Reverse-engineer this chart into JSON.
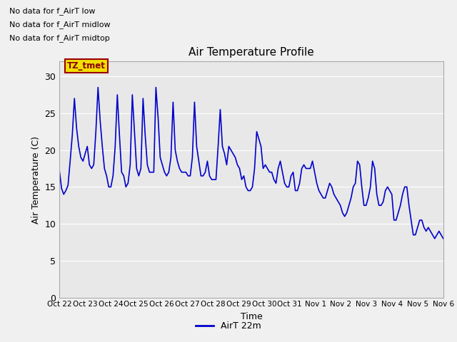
{
  "title": "Air Temperature Profile",
  "xlabel": "Time",
  "ylabel": "Air Temperature (C)",
  "ylim": [
    0,
    32
  ],
  "yticks": [
    0,
    5,
    10,
    15,
    20,
    25,
    30
  ],
  "line_color": "#0000CC",
  "line_width": 1.2,
  "bg_color": "#e8e8e8",
  "fig_bg_color": "#f0f0f0",
  "legend_label": "AirT 22m",
  "text_lines": [
    "No data for f_AirT low",
    "No data for f_AirT midlow",
    "No data for f_AirT midtop"
  ],
  "tz_label": "TZ_tmet",
  "x_tick_labels": [
    "Oct 22",
    "Oct 23",
    "Oct 24",
    "Oct 25",
    "Oct 26",
    "Oct 27",
    "Oct 28",
    "Oct 29",
    "Oct 30",
    "Oct 31",
    "Nov 1",
    "Nov 2",
    "Nov 3",
    "Nov 4",
    "Nov 5",
    "Nov 6"
  ],
  "temp_data": [
    17.2,
    14.8,
    14.0,
    14.5,
    15.2,
    18.5,
    22.0,
    27.0,
    23.0,
    20.5,
    19.0,
    18.5,
    19.5,
    20.5,
    18.0,
    17.5,
    18.0,
    22.5,
    28.5,
    24.0,
    20.5,
    17.5,
    16.5,
    15.0,
    15.0,
    16.5,
    20.5,
    27.5,
    22.0,
    17.0,
    16.5,
    15.0,
    15.5,
    18.0,
    27.5,
    22.5,
    17.5,
    16.5,
    17.5,
    27.0,
    22.0,
    18.0,
    17.0,
    17.0,
    17.0,
    28.5,
    24.5,
    19.0,
    18.0,
    17.0,
    16.5,
    17.0,
    19.0,
    26.5,
    20.0,
    18.5,
    17.5,
    17.0,
    17.0,
    17.0,
    16.5,
    16.5,
    19.0,
    26.5,
    20.5,
    18.5,
    16.5,
    16.5,
    17.0,
    18.5,
    16.5,
    16.0,
    16.0,
    16.0,
    20.5,
    25.5,
    20.5,
    19.5,
    18.0,
    20.5,
    20.0,
    19.5,
    19.0,
    18.0,
    17.5,
    16.0,
    16.5,
    15.0,
    14.5,
    14.5,
    15.0,
    17.5,
    22.5,
    21.5,
    20.5,
    17.5,
    18.0,
    17.5,
    17.0,
    17.0,
    16.0,
    15.5,
    17.5,
    18.5,
    17.0,
    15.5,
    15.0,
    15.0,
    16.5,
    17.0,
    14.5,
    14.5,
    15.5,
    17.5,
    18.0,
    17.5,
    17.5,
    17.5,
    18.5,
    17.0,
    15.5,
    14.5,
    14.0,
    13.5,
    13.5,
    14.5,
    15.5,
    15.0,
    14.0,
    13.5,
    13.0,
    12.5,
    11.5,
    11.0,
    11.5,
    12.5,
    13.5,
    15.0,
    15.5,
    18.5,
    18.0,
    15.0,
    12.5,
    12.5,
    13.5,
    15.0,
    18.5,
    17.5,
    14.0,
    12.5,
    12.5,
    13.0,
    14.5,
    15.0,
    14.5,
    14.0,
    10.5,
    10.5,
    11.5,
    12.5,
    14.0,
    15.0,
    15.0,
    12.5,
    10.5,
    8.5,
    8.5,
    9.5,
    10.5,
    10.5,
    9.5,
    9.0,
    9.5,
    9.0,
    8.5,
    8.0,
    8.5,
    9.0,
    8.5,
    8.0
  ]
}
